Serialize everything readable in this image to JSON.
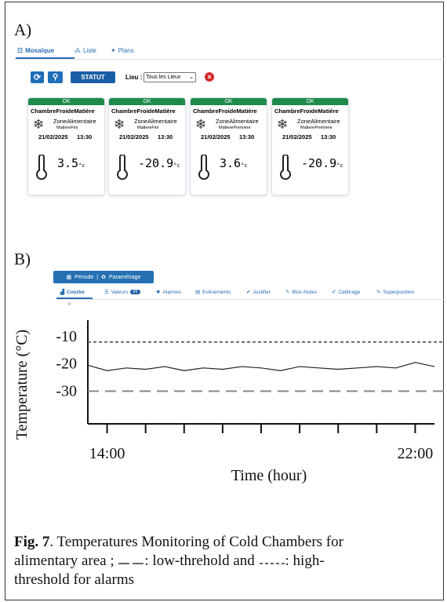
{
  "panel_a": {
    "label": "A)",
    "tabs": [
      "Mosaïque",
      "Liste",
      "Plans"
    ],
    "toolbar": {
      "status_button": "STATUT",
      "location_label": "Lieu :",
      "location_select": "Tous les Lieux"
    },
    "cards": [
      {
        "status": "OK",
        "name": "ChambreFroideMatière",
        "zone": "ZoneAlimentaire",
        "product": "MatiereFini",
        "date": "21/02/2025",
        "time": "13:30",
        "temperature": 3.5,
        "unit": "°c"
      },
      {
        "status": "OK",
        "name": "ChambreFroideMatière",
        "zone": "ZoneAlimentaire",
        "product": "MatiereFini",
        "date": "21/02/2025",
        "time": "13:30",
        "temperature": -20.9,
        "unit": "°c"
      },
      {
        "status": "OK",
        "name": "ChambreFroideMatière",
        "zone": "ZoneAlimentaire",
        "product": "MatierePremiere",
        "date": "21/02/2025",
        "time": "13:30",
        "temperature": 3.6,
        "unit": "°c"
      },
      {
        "status": "OK",
        "name": "ChambreFroideMatière",
        "zone": "ZoneAlimentaire",
        "product": "MatierePremiere",
        "date": "21/02/2025",
        "time": "13:30",
        "temperature": -20.9,
        "unit": "°c"
      }
    ]
  },
  "panel_b": {
    "label": "B)",
    "toolbar": {
      "period": "Période",
      "separator": "|",
      "settings": "Paramétrage"
    },
    "tabs": [
      "Courbe",
      "Valeurs",
      "Alarmes",
      "Evènements",
      "Justifier",
      "Bloc-Notes",
      "Calibrage",
      "Superposition"
    ],
    "values_badge": "96",
    "sub_count": "0"
  },
  "chart_data": {
    "type": "line",
    "ylabel": "Temperature (°C)",
    "xlabel": "Time (hour)",
    "x": [
      13.5,
      14,
      14.5,
      15,
      15.5,
      16,
      16.5,
      17,
      17.5,
      18,
      18.5,
      19,
      19.5,
      20,
      20.5,
      21,
      21.5,
      22,
      22.5
    ],
    "values": [
      -20.5,
      -22.5,
      -21.5,
      -22,
      -21,
      -22.5,
      -21.5,
      -22,
      -21,
      -21.5,
      -22.5,
      -21,
      -21.5,
      -22,
      -21.5,
      -21,
      -21.5,
      -19.5,
      -21
    ],
    "color": "#222",
    "xlim": [
      13.5,
      22.5
    ],
    "ylim": [
      -42,
      -4
    ],
    "xticks": [
      {
        "value": 14,
        "label": "14:00"
      },
      {
        "value": 22,
        "label": "22:00"
      }
    ],
    "minor_xticks": [
      15,
      16,
      17,
      18,
      19,
      20,
      21
    ],
    "yticks": [
      -10,
      -20,
      -30
    ],
    "thresholds": [
      {
        "value": -12,
        "style": "short-dash",
        "color": "#666"
      },
      {
        "value": -30,
        "style": "long-dash",
        "color": "#888"
      }
    ]
  },
  "caption": {
    "label": "Fig. 7",
    "line1": ". Temperatures Monitoring of Cold Chambers for",
    "line2a": "alimentary area ; ",
    "line2b": ": low-threhold and ",
    "line2c": ": high-",
    "line3": "threshold for alarms"
  }
}
